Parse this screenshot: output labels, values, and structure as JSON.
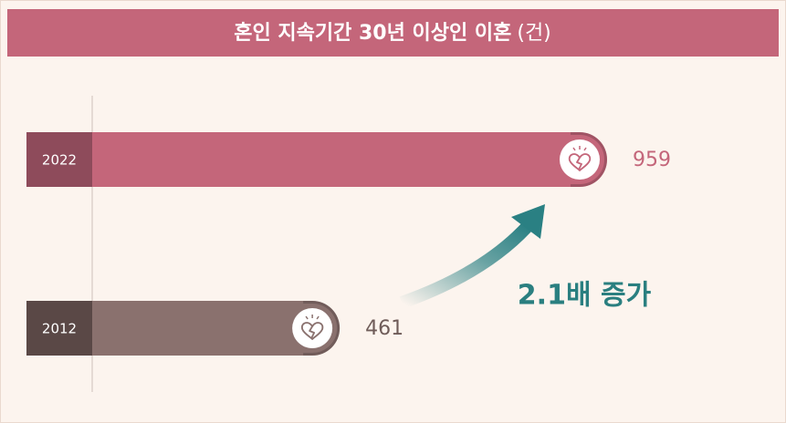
{
  "chart_data": {
    "type": "bar",
    "orientation": "horizontal",
    "title": "혼인 지속기간 30년 이상인 이혼",
    "unit": "(건)",
    "categories": [
      "2022",
      "2012"
    ],
    "values": [
      959,
      461
    ],
    "colors": [
      "#c4667a",
      "#8a716e"
    ],
    "annotation": "2.1배 증가"
  }
}
